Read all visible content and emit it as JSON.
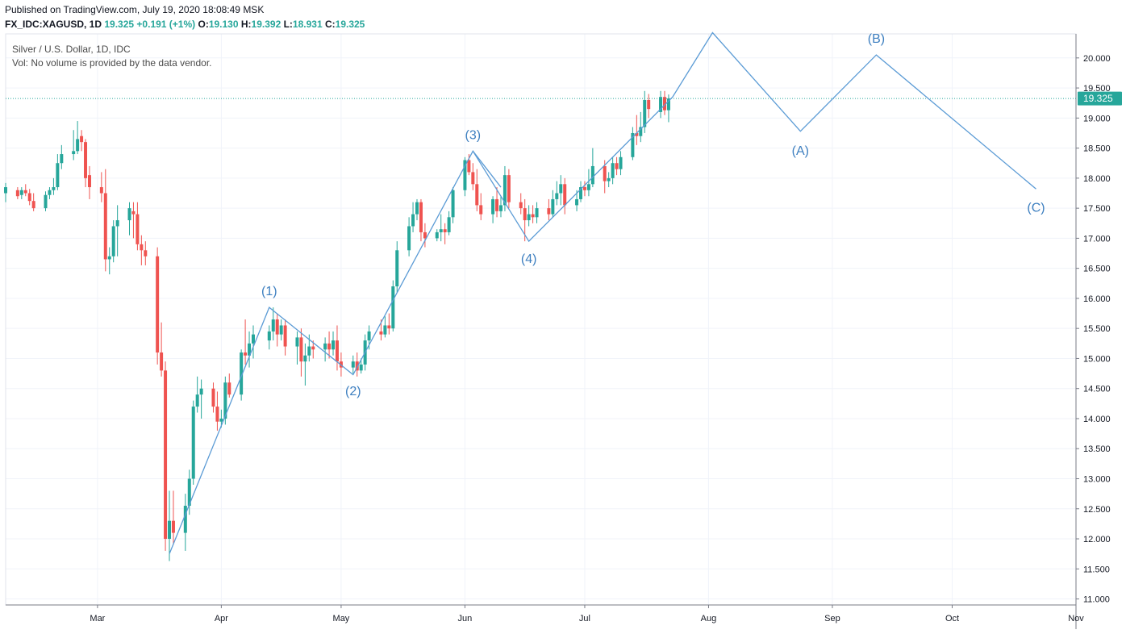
{
  "header": {
    "published": "Published on TradingView.com, July 19, 2020 18:08:49 MSK",
    "symbol": "FX_IDC:XAGUSD, 1D",
    "last": "19.325",
    "change": "+0.191 (+1%)",
    "o_label": "O:",
    "o_val": "19.130",
    "h_label": "H:",
    "h_val": "19.392",
    "l_label": "L:",
    "l_val": "18.931",
    "c_label": "C:",
    "c_val": "19.325"
  },
  "legend": {
    "title": "Silver / U.S. Dollar, 1D, IDC",
    "volume_note": "Vol: No volume is provided by the data vendor."
  },
  "price_tag": "19.325",
  "colors": {
    "up": "#26a69a",
    "down": "#ef5350",
    "wave": "#5b9bd5",
    "axis": "#787b86",
    "grid": "#f0f3fa",
    "tag": "#26a69a"
  },
  "chart_data": {
    "type": "candlestick",
    "ylim": [
      10.9,
      20.4
    ],
    "y_ticks": [
      11.0,
      11.5,
      12.0,
      12.5,
      13.0,
      13.5,
      14.0,
      14.5,
      15.0,
      15.5,
      16.0,
      16.5,
      17.0,
      17.5,
      18.0,
      18.5,
      19.0,
      19.5,
      20.0
    ],
    "y_tick_labels": [
      "11.000",
      "11.500",
      "12.000",
      "12.500",
      "13.000",
      "13.500",
      "14.000",
      "14.500",
      "15.000",
      "15.500",
      "16.000",
      "16.500",
      "17.000",
      "17.500",
      "18.000",
      "18.500",
      "19.000",
      "19.500",
      "20.000"
    ],
    "x_ticks": [
      "2020-03-01",
      "2020-04-01",
      "2020-05-01",
      "2020-06-01",
      "2020-07-01",
      "2020-08-01",
      "2020-09-01",
      "2020-10-01",
      "2020-11-01"
    ],
    "x_tick_labels": [
      "Mar",
      "Apr",
      "May",
      "Jun",
      "Jul",
      "Aug",
      "Sep",
      "Oct",
      "Nov"
    ],
    "xlim": [
      "2020-02-07",
      "2020-11-01"
    ],
    "candles": [
      {
        "d": "2020-02-07",
        "o": 17.75,
        "h": 17.92,
        "l": 17.6,
        "c": 17.85
      },
      {
        "d": "2020-02-10",
        "o": 17.8,
        "h": 17.85,
        "l": 17.65,
        "c": 17.7
      },
      {
        "d": "2020-02-11",
        "o": 17.72,
        "h": 17.85,
        "l": 17.65,
        "c": 17.8
      },
      {
        "d": "2020-02-12",
        "o": 17.8,
        "h": 17.9,
        "l": 17.7,
        "c": 17.75
      },
      {
        "d": "2020-02-13",
        "o": 17.75,
        "h": 17.82,
        "l": 17.55,
        "c": 17.62
      },
      {
        "d": "2020-02-14",
        "o": 17.62,
        "h": 17.75,
        "l": 17.45,
        "c": 17.5
      },
      {
        "d": "2020-02-17",
        "o": 17.5,
        "h": 17.78,
        "l": 17.45,
        "c": 17.72
      },
      {
        "d": "2020-02-18",
        "o": 17.72,
        "h": 17.85,
        "l": 17.65,
        "c": 17.8
      },
      {
        "d": "2020-02-19",
        "o": 17.8,
        "h": 18.0,
        "l": 17.72,
        "c": 17.85
      },
      {
        "d": "2020-02-20",
        "o": 17.85,
        "h": 18.4,
        "l": 17.8,
        "c": 18.25
      },
      {
        "d": "2020-02-21",
        "o": 18.25,
        "h": 18.55,
        "l": 18.15,
        "c": 18.4
      },
      {
        "d": "2020-02-24",
        "o": 18.4,
        "h": 18.8,
        "l": 18.3,
        "c": 18.45
      },
      {
        "d": "2020-02-25",
        "o": 18.45,
        "h": 18.95,
        "l": 18.4,
        "c": 18.65
      },
      {
        "d": "2020-02-26",
        "o": 18.7,
        "h": 18.8,
        "l": 18.45,
        "c": 18.6
      },
      {
        "d": "2020-02-27",
        "o": 18.6,
        "h": 18.65,
        "l": 17.85,
        "c": 18.0
      },
      {
        "d": "2020-02-28",
        "o": 18.05,
        "h": 18.2,
        "l": 17.65,
        "c": 17.85
      },
      {
        "d": "2020-03-02",
        "o": 17.85,
        "h": 18.1,
        "l": 17.6,
        "c": 17.75
      },
      {
        "d": "2020-03-03",
        "o": 17.75,
        "h": 18.15,
        "l": 16.45,
        "c": 16.65
      },
      {
        "d": "2020-03-04",
        "o": 16.65,
        "h": 16.85,
        "l": 16.4,
        "c": 16.7
      },
      {
        "d": "2020-03-05",
        "o": 16.7,
        "h": 17.3,
        "l": 16.6,
        "c": 17.2
      },
      {
        "d": "2020-03-06",
        "o": 17.2,
        "h": 17.55,
        "l": 16.7,
        "c": 17.3
      },
      {
        "d": "2020-03-09",
        "o": 17.3,
        "h": 17.6,
        "l": 17.05,
        "c": 17.5
      },
      {
        "d": "2020-03-10",
        "o": 17.45,
        "h": 17.6,
        "l": 17.0,
        "c": 17.4
      },
      {
        "d": "2020-03-11",
        "o": 17.4,
        "h": 17.6,
        "l": 16.8,
        "c": 16.9
      },
      {
        "d": "2020-03-12",
        "o": 16.9,
        "h": 17.05,
        "l": 16.55,
        "c": 16.8
      },
      {
        "d": "2020-03-13",
        "o": 16.8,
        "h": 16.95,
        "l": 16.55,
        "c": 16.7
      },
      {
        "d": "2020-03-16",
        "o": 16.7,
        "h": 16.85,
        "l": 14.9,
        "c": 15.1
      },
      {
        "d": "2020-03-17",
        "o": 15.1,
        "h": 15.6,
        "l": 14.7,
        "c": 14.8
      },
      {
        "d": "2020-03-18",
        "o": 14.8,
        "h": 14.95,
        "l": 11.8,
        "c": 12.0
      },
      {
        "d": "2020-03-19",
        "o": 12.0,
        "h": 12.8,
        "l": 11.63,
        "c": 12.3
      },
      {
        "d": "2020-03-20",
        "o": 12.3,
        "h": 12.8,
        "l": 11.9,
        "c": 12.1
      },
      {
        "d": "2020-03-23",
        "o": 12.1,
        "h": 12.75,
        "l": 11.8,
        "c": 12.55
      },
      {
        "d": "2020-03-24",
        "o": 12.55,
        "h": 13.15,
        "l": 12.4,
        "c": 13.0
      },
      {
        "d": "2020-03-25",
        "o": 13.0,
        "h": 14.3,
        "l": 12.9,
        "c": 14.2
      },
      {
        "d": "2020-03-26",
        "o": 14.2,
        "h": 14.7,
        "l": 14.1,
        "c": 14.4
      },
      {
        "d": "2020-03-27",
        "o": 14.4,
        "h": 14.65,
        "l": 14.0,
        "c": 14.5
      },
      {
        "d": "2020-03-30",
        "o": 14.5,
        "h": 14.6,
        "l": 14.1,
        "c": 14.2
      },
      {
        "d": "2020-03-31",
        "o": 14.2,
        "h": 14.45,
        "l": 13.8,
        "c": 13.95
      },
      {
        "d": "2020-04-01",
        "o": 13.95,
        "h": 14.15,
        "l": 13.85,
        "c": 14.0
      },
      {
        "d": "2020-04-02",
        "o": 14.0,
        "h": 14.7,
        "l": 13.9,
        "c": 14.6
      },
      {
        "d": "2020-04-03",
        "o": 14.6,
        "h": 14.75,
        "l": 14.35,
        "c": 14.4
      },
      {
        "d": "2020-04-06",
        "o": 14.4,
        "h": 15.15,
        "l": 14.3,
        "c": 15.1
      },
      {
        "d": "2020-04-07",
        "o": 15.1,
        "h": 15.65,
        "l": 14.9,
        "c": 15.05
      },
      {
        "d": "2020-04-08",
        "o": 15.05,
        "h": 15.45,
        "l": 14.85,
        "c": 15.25
      },
      {
        "d": "2020-04-09",
        "o": 15.25,
        "h": 15.55,
        "l": 15.0,
        "c": 15.4
      },
      {
        "d": "2020-04-13",
        "o": 15.3,
        "h": 15.55,
        "l": 15.15,
        "c": 15.45
      },
      {
        "d": "2020-04-14",
        "o": 15.45,
        "h": 15.85,
        "l": 15.3,
        "c": 15.65
      },
      {
        "d": "2020-04-15",
        "o": 15.65,
        "h": 15.75,
        "l": 15.2,
        "c": 15.4
      },
      {
        "d": "2020-04-16",
        "o": 15.4,
        "h": 15.65,
        "l": 15.3,
        "c": 15.55
      },
      {
        "d": "2020-04-17",
        "o": 15.55,
        "h": 15.65,
        "l": 15.05,
        "c": 15.2
      },
      {
        "d": "2020-04-20",
        "o": 15.2,
        "h": 15.45,
        "l": 14.9,
        "c": 15.35
      },
      {
        "d": "2020-04-21",
        "o": 15.35,
        "h": 15.5,
        "l": 14.7,
        "c": 14.95
      },
      {
        "d": "2020-04-22",
        "o": 14.95,
        "h": 15.25,
        "l": 14.55,
        "c": 15.05
      },
      {
        "d": "2020-04-23",
        "o": 15.05,
        "h": 15.4,
        "l": 14.95,
        "c": 15.2
      },
      {
        "d": "2020-04-24",
        "o": 15.2,
        "h": 15.3,
        "l": 15.0,
        "c": 15.15
      },
      {
        "d": "2020-04-27",
        "o": 15.15,
        "h": 15.35,
        "l": 14.95,
        "c": 15.25
      },
      {
        "d": "2020-04-28",
        "o": 15.25,
        "h": 15.45,
        "l": 15.0,
        "c": 15.15
      },
      {
        "d": "2020-04-29",
        "o": 15.15,
        "h": 15.45,
        "l": 15.05,
        "c": 15.3
      },
      {
        "d": "2020-04-30",
        "o": 15.3,
        "h": 15.55,
        "l": 14.8,
        "c": 14.95
      },
      {
        "d": "2020-05-01",
        "o": 14.95,
        "h": 15.1,
        "l": 14.7,
        "c": 14.85
      },
      {
        "d": "2020-05-04",
        "o": 14.85,
        "h": 15.05,
        "l": 14.75,
        "c": 14.95
      },
      {
        "d": "2020-05-05",
        "o": 14.95,
        "h": 15.1,
        "l": 14.7,
        "c": 14.8
      },
      {
        "d": "2020-05-06",
        "o": 14.8,
        "h": 15.0,
        "l": 14.75,
        "c": 14.9
      },
      {
        "d": "2020-05-07",
        "o": 14.9,
        "h": 15.4,
        "l": 14.8,
        "c": 15.3
      },
      {
        "d": "2020-05-08",
        "o": 15.3,
        "h": 15.55,
        "l": 15.15,
        "c": 15.45
      },
      {
        "d": "2020-05-11",
        "o": 15.45,
        "h": 15.65,
        "l": 15.3,
        "c": 15.4
      },
      {
        "d": "2020-05-12",
        "o": 15.4,
        "h": 15.7,
        "l": 15.35,
        "c": 15.55
      },
      {
        "d": "2020-05-13",
        "o": 15.55,
        "h": 15.75,
        "l": 15.4,
        "c": 15.5
      },
      {
        "d": "2020-05-14",
        "o": 15.5,
        "h": 16.3,
        "l": 15.45,
        "c": 16.2
      },
      {
        "d": "2020-05-15",
        "o": 16.2,
        "h": 16.95,
        "l": 16.1,
        "c": 16.8
      },
      {
        "d": "2020-05-18",
        "o": 16.8,
        "h": 17.35,
        "l": 16.7,
        "c": 17.2
      },
      {
        "d": "2020-05-19",
        "o": 17.2,
        "h": 17.6,
        "l": 17.1,
        "c": 17.4
      },
      {
        "d": "2020-05-20",
        "o": 17.4,
        "h": 17.65,
        "l": 17.3,
        "c": 17.6
      },
      {
        "d": "2020-05-21",
        "o": 17.6,
        "h": 17.65,
        "l": 16.95,
        "c": 17.1
      },
      {
        "d": "2020-05-22",
        "o": 17.1,
        "h": 17.25,
        "l": 16.85,
        "c": 17.0
      },
      {
        "d": "2020-05-25",
        "o": 17.0,
        "h": 17.15,
        "l": 16.95,
        "c": 17.1
      },
      {
        "d": "2020-05-26",
        "o": 17.1,
        "h": 17.4,
        "l": 16.95,
        "c": 17.15
      },
      {
        "d": "2020-05-27",
        "o": 17.15,
        "h": 17.25,
        "l": 16.9,
        "c": 17.1
      },
      {
        "d": "2020-05-28",
        "o": 17.1,
        "h": 17.45,
        "l": 17.05,
        "c": 17.35
      },
      {
        "d": "2020-05-29",
        "o": 17.35,
        "h": 17.85,
        "l": 17.25,
        "c": 17.8
      },
      {
        "d": "2020-06-01",
        "o": 17.8,
        "h": 18.35,
        "l": 17.7,
        "c": 18.3
      },
      {
        "d": "2020-06-02",
        "o": 18.3,
        "h": 18.4,
        "l": 18.05,
        "c": 18.1
      },
      {
        "d": "2020-06-03",
        "o": 18.1,
        "h": 18.25,
        "l": 17.8,
        "c": 17.9
      },
      {
        "d": "2020-06-04",
        "o": 17.9,
        "h": 18.15,
        "l": 17.45,
        "c": 17.55
      },
      {
        "d": "2020-06-05",
        "o": 17.55,
        "h": 17.75,
        "l": 17.3,
        "c": 17.4
      },
      {
        "d": "2020-06-08",
        "o": 17.4,
        "h": 17.7,
        "l": 17.25,
        "c": 17.65
      },
      {
        "d": "2020-06-09",
        "o": 17.65,
        "h": 17.85,
        "l": 17.35,
        "c": 17.45
      },
      {
        "d": "2020-06-10",
        "o": 17.45,
        "h": 17.7,
        "l": 17.35,
        "c": 17.55
      },
      {
        "d": "2020-06-11",
        "o": 17.55,
        "h": 18.2,
        "l": 17.45,
        "c": 18.05
      },
      {
        "d": "2020-06-12",
        "o": 18.05,
        "h": 18.15,
        "l": 17.5,
        "c": 17.6
      },
      {
        "d": "2020-06-15",
        "o": 17.6,
        "h": 17.75,
        "l": 17.4,
        "c": 17.5
      },
      {
        "d": "2020-06-16",
        "o": 17.5,
        "h": 17.65,
        "l": 16.95,
        "c": 17.3
      },
      {
        "d": "2020-06-17",
        "o": 17.3,
        "h": 17.55,
        "l": 17.2,
        "c": 17.4
      },
      {
        "d": "2020-06-18",
        "o": 17.4,
        "h": 17.55,
        "l": 17.25,
        "c": 17.35
      },
      {
        "d": "2020-06-19",
        "o": 17.35,
        "h": 17.6,
        "l": 17.25,
        "c": 17.5
      },
      {
        "d": "2020-06-22",
        "o": 17.5,
        "h": 17.65,
        "l": 17.3,
        "c": 17.4
      },
      {
        "d": "2020-06-23",
        "o": 17.4,
        "h": 17.8,
        "l": 17.35,
        "c": 17.65
      },
      {
        "d": "2020-06-24",
        "o": 17.65,
        "h": 17.95,
        "l": 17.55,
        "c": 17.75
      },
      {
        "d": "2020-06-25",
        "o": 17.75,
        "h": 18.05,
        "l": 17.55,
        "c": 17.9
      },
      {
        "d": "2020-06-26",
        "o": 17.9,
        "h": 18.0,
        "l": 17.4,
        "c": 17.55
      },
      {
        "d": "2020-06-29",
        "o": 17.55,
        "h": 17.8,
        "l": 17.45,
        "c": 17.65
      },
      {
        "d": "2020-06-30",
        "o": 17.65,
        "h": 17.95,
        "l": 17.6,
        "c": 17.85
      },
      {
        "d": "2020-07-01",
        "o": 17.85,
        "h": 17.95,
        "l": 17.7,
        "c": 17.8
      },
      {
        "d": "2020-07-02",
        "o": 17.8,
        "h": 18.15,
        "l": 17.7,
        "c": 17.9
      },
      {
        "d": "2020-07-03",
        "o": 17.9,
        "h": 18.5,
        "l": 17.85,
        "c": 18.2
      },
      {
        "d": "2020-07-06",
        "o": 18.2,
        "h": 18.3,
        "l": 17.75,
        "c": 17.95
      },
      {
        "d": "2020-07-07",
        "o": 17.95,
        "h": 18.1,
        "l": 17.85,
        "c": 18.0
      },
      {
        "d": "2020-07-08",
        "o": 18.0,
        "h": 18.35,
        "l": 17.9,
        "c": 18.25
      },
      {
        "d": "2020-07-09",
        "o": 18.25,
        "h": 18.35,
        "l": 18.05,
        "c": 18.15
      },
      {
        "d": "2020-07-10",
        "o": 18.15,
        "h": 18.45,
        "l": 18.05,
        "c": 18.35
      },
      {
        "d": "2020-07-13",
        "o": 18.35,
        "h": 18.85,
        "l": 18.3,
        "c": 18.75
      },
      {
        "d": "2020-07-14",
        "o": 18.75,
        "h": 19.05,
        "l": 18.55,
        "c": 18.7
      },
      {
        "d": "2020-07-15",
        "o": 18.7,
        "h": 19.1,
        "l": 18.6,
        "c": 18.85
      },
      {
        "d": "2020-07-16",
        "o": 18.85,
        "h": 19.45,
        "l": 18.75,
        "c": 19.3
      },
      {
        "d": "2020-07-17",
        "o": 19.3,
        "h": 19.4,
        "l": 19.0,
        "c": 19.15
      },
      {
        "d": "2020-07-20",
        "o": 19.1,
        "h": 19.45,
        "l": 19.0,
        "c": 19.35
      },
      {
        "d": "2020-07-21",
        "o": 19.35,
        "h": 19.45,
        "l": 19.05,
        "c": 19.13
      },
      {
        "d": "2020-07-22",
        "o": 19.13,
        "h": 19.392,
        "l": 18.931,
        "c": 19.325
      }
    ],
    "wave_lines": [
      {
        "name": "impulse",
        "points": [
          [
            "2020-03-19",
            11.75
          ],
          [
            "2020-04-13",
            15.85
          ],
          [
            "2020-05-04",
            14.73
          ],
          [
            "2020-06-03",
            18.45
          ],
          [
            "2020-06-17",
            16.95
          ],
          [
            "2020-07-23",
            19.35
          ],
          [
            "2020-08-02",
            20.42
          ],
          [
            "2020-08-24",
            18.78
          ],
          [
            "2020-09-12",
            20.05
          ],
          [
            "2020-10-22",
            17.82
          ]
        ]
      },
      {
        "name": "w3-w4",
        "points": [
          [
            "2020-06-03",
            18.45
          ],
          [
            "2020-06-10",
            17.85
          ]
        ]
      }
    ],
    "wave_labels": [
      {
        "text": "(1)",
        "x": "2020-04-13",
        "y": 16.05,
        "pos": "above"
      },
      {
        "text": "(2)",
        "x": "2020-05-04",
        "y": 14.55,
        "pos": "below"
      },
      {
        "text": "(3)",
        "x": "2020-06-03",
        "y": 18.65,
        "pos": "above"
      },
      {
        "text": "(4)",
        "x": "2020-06-17",
        "y": 16.75,
        "pos": "below"
      },
      {
        "text": "(A)",
        "x": "2020-08-24",
        "y": 18.55,
        "pos": "below"
      },
      {
        "text": "(B)",
        "x": "2020-09-12",
        "y": 20.25,
        "pos": "above"
      },
      {
        "text": "(C)",
        "x": "2020-10-22",
        "y": 17.6,
        "pos": "below"
      }
    ],
    "last_price": 19.325
  }
}
